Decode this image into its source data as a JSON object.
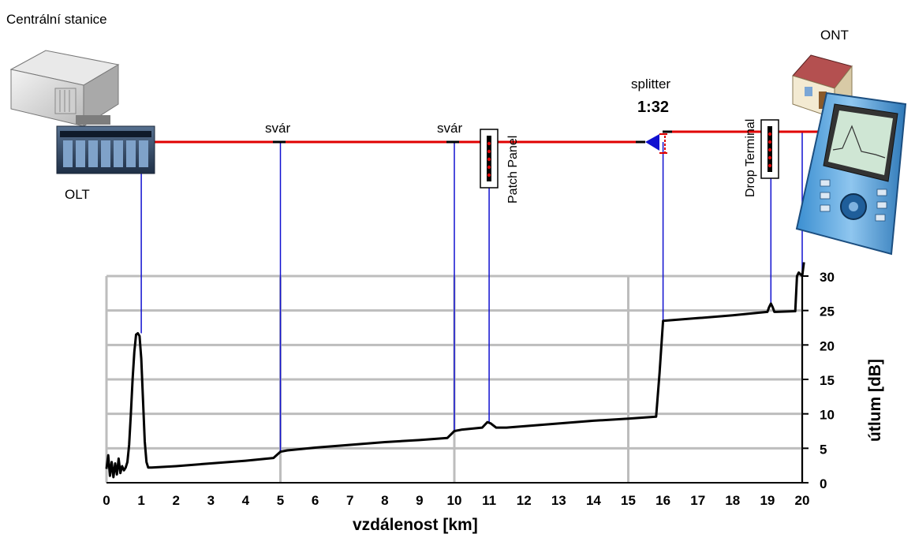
{
  "labels": {
    "central_station": "Centrální stanice",
    "olt": "OLT",
    "ont": "ONT",
    "splice_1": "svár",
    "splice_2": "svár",
    "patch_panel": "Patch Panel",
    "splitter": "splitter",
    "split_ratio": "1:32",
    "drop_terminal": "Drop Terminal"
  },
  "colors": {
    "fiber": "#e00000",
    "marker": "#1010d0",
    "trace": "#000000",
    "grid": "#bdbdbd",
    "ratio": "#e00000"
  },
  "icons": [
    "server-icon",
    "olt-rack-icon",
    "house-icon",
    "otdr-device-icon",
    "splitter-icon",
    "patch-panel-icon",
    "drop-terminal-icon"
  ],
  "chart_data": {
    "type": "line",
    "xlabel": "vzdálenost [km]",
    "ylabel": "útlum [dB]",
    "xlim": [
      0,
      20
    ],
    "ylim": [
      0,
      30
    ],
    "x_ticks": [
      "0",
      "1",
      "2",
      "3",
      "4",
      "5",
      "6",
      "7",
      "8",
      "9",
      "10",
      "11",
      "12",
      "13",
      "14",
      "15",
      "16",
      "17",
      "18",
      "19",
      "20"
    ],
    "y_ticks": [
      "0",
      "5",
      "10",
      "15",
      "20",
      "25",
      "30"
    ],
    "grid": true,
    "series": [
      {
        "x": [
          0,
          0.05,
          0.1,
          0.15,
          0.2,
          0.25,
          0.3,
          0.35,
          0.4,
          0.45,
          0.5,
          0.55,
          0.6,
          0.65,
          0.7,
          0.75,
          0.8,
          0.85,
          0.9,
          0.95,
          1.0,
          1.05,
          1.1,
          1.15,
          1.2,
          1.3,
          2,
          3,
          4,
          4.8,
          5.0,
          5.2,
          6,
          7,
          8,
          9,
          9.8,
          10.0,
          10.2,
          10.8,
          10.95,
          11.05,
          11.2,
          11.5,
          12,
          13,
          14,
          15,
          15.8,
          15.9,
          16.0,
          17,
          18,
          19,
          19.05,
          19.1,
          19.15,
          19.2,
          19.25,
          19.8,
          19.85,
          19.9,
          20.0,
          20.05
        ],
        "y": [
          2.0,
          4.0,
          1.0,
          3.0,
          0.8,
          2.8,
          1.2,
          3.5,
          1.4,
          2.4,
          1.8,
          2.2,
          3.0,
          5.5,
          10.0,
          15.0,
          19.0,
          21.5,
          21.7,
          21.3,
          18.0,
          12.0,
          6.0,
          3.0,
          2.2,
          2.2,
          2.4,
          2.8,
          3.2,
          3.6,
          4.5,
          4.7,
          5.1,
          5.5,
          5.9,
          6.2,
          6.5,
          7.5,
          7.7,
          8.0,
          8.8,
          8.6,
          8.0,
          8.0,
          8.2,
          8.6,
          9.0,
          9.3,
          9.6,
          16.0,
          23.5,
          23.9,
          24.3,
          24.8,
          25.5,
          26.0,
          25.5,
          24.8,
          24.8,
          24.9,
          30.0,
          30.5,
          30.0,
          32.0
        ],
        "color": "#000000"
      }
    ],
    "event_markers_km": [
      1,
      5,
      10,
      11,
      16,
      19.1,
      20
    ],
    "splice_positions_km": [
      5,
      10
    ]
  }
}
